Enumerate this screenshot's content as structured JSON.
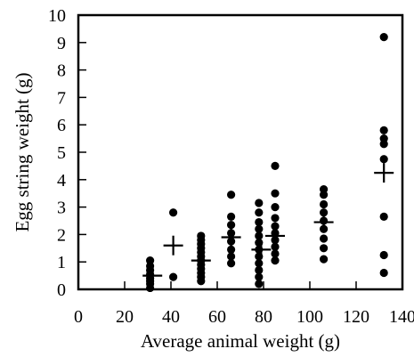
{
  "chart_data": {
    "type": "scatter",
    "title": "",
    "xlabel": "Average animal weight (g)",
    "ylabel": "Egg string weight (g)",
    "xlim": [
      0,
      140
    ],
    "ylim": [
      0,
      10
    ],
    "x_ticks": [
      0,
      20,
      40,
      60,
      80,
      100,
      120,
      140
    ],
    "y_ticks": [
      0,
      1,
      2,
      3,
      4,
      5,
      6,
      7,
      8,
      9,
      10
    ],
    "x_tick_labels": [
      "0",
      "20",
      "40",
      "60",
      "80",
      "100",
      "120",
      "140"
    ],
    "y_tick_labels": [
      "0",
      "1",
      "2",
      "3",
      "4",
      "5",
      "6",
      "7",
      "8",
      "9",
      "10"
    ],
    "grid": false,
    "legend": "none",
    "marker_color": "#000000",
    "series": [
      {
        "marker": "filled-circle",
        "points": [
          [
            31,
            0.05
          ],
          [
            31,
            0.2
          ],
          [
            31,
            0.3
          ],
          [
            31,
            0.4
          ],
          [
            31,
            0.55
          ],
          [
            31,
            0.7
          ],
          [
            31,
            0.85
          ],
          [
            31,
            1.05
          ],
          [
            41,
            0.45
          ],
          [
            41,
            2.8
          ],
          [
            53,
            0.3
          ],
          [
            53,
            0.45
          ],
          [
            53,
            0.6
          ],
          [
            53,
            0.75
          ],
          [
            53,
            0.9
          ],
          [
            53,
            1.05
          ],
          [
            53,
            1.2
          ],
          [
            53,
            1.35
          ],
          [
            53,
            1.5
          ],
          [
            53,
            1.65
          ],
          [
            53,
            1.8
          ],
          [
            53,
            1.95
          ],
          [
            66,
            0.95
          ],
          [
            66,
            1.2
          ],
          [
            66,
            1.45
          ],
          [
            66,
            1.75
          ],
          [
            66,
            2.05
          ],
          [
            66,
            2.35
          ],
          [
            66,
            2.65
          ],
          [
            66,
            3.45
          ],
          [
            78,
            0.2
          ],
          [
            78,
            0.45
          ],
          [
            78,
            0.7
          ],
          [
            78,
            0.95
          ],
          [
            78,
            1.2
          ],
          [
            78,
            1.45
          ],
          [
            78,
            1.7
          ],
          [
            78,
            1.95
          ],
          [
            78,
            2.2
          ],
          [
            78,
            2.45
          ],
          [
            78,
            2.8
          ],
          [
            78,
            3.15
          ],
          [
            85,
            1.05
          ],
          [
            85,
            1.3
          ],
          [
            85,
            1.55
          ],
          [
            85,
            1.8
          ],
          [
            85,
            2.05
          ],
          [
            85,
            2.3
          ],
          [
            85,
            2.6
          ],
          [
            85,
            3.0
          ],
          [
            85,
            3.5
          ],
          [
            85,
            4.5
          ],
          [
            106,
            1.1
          ],
          [
            106,
            1.5
          ],
          [
            106,
            1.85
          ],
          [
            106,
            2.2
          ],
          [
            106,
            2.5
          ],
          [
            106,
            2.8
          ],
          [
            106,
            3.1
          ],
          [
            106,
            3.45
          ],
          [
            106,
            3.65
          ],
          [
            132,
            0.6
          ],
          [
            132,
            1.25
          ],
          [
            132,
            2.65
          ],
          [
            132,
            4.75
          ],
          [
            132,
            5.3
          ],
          [
            132,
            5.5
          ],
          [
            132,
            5.8
          ],
          [
            132,
            9.2
          ]
        ]
      },
      {
        "marker": "plus",
        "points": [
          [
            32,
            0.5
          ],
          [
            41,
            1.6
          ],
          [
            53,
            1.05
          ],
          [
            66,
            1.9
          ],
          [
            79,
            1.45
          ],
          [
            85,
            1.95
          ],
          [
            106,
            2.45
          ],
          [
            132,
            4.25
          ]
        ]
      }
    ]
  }
}
